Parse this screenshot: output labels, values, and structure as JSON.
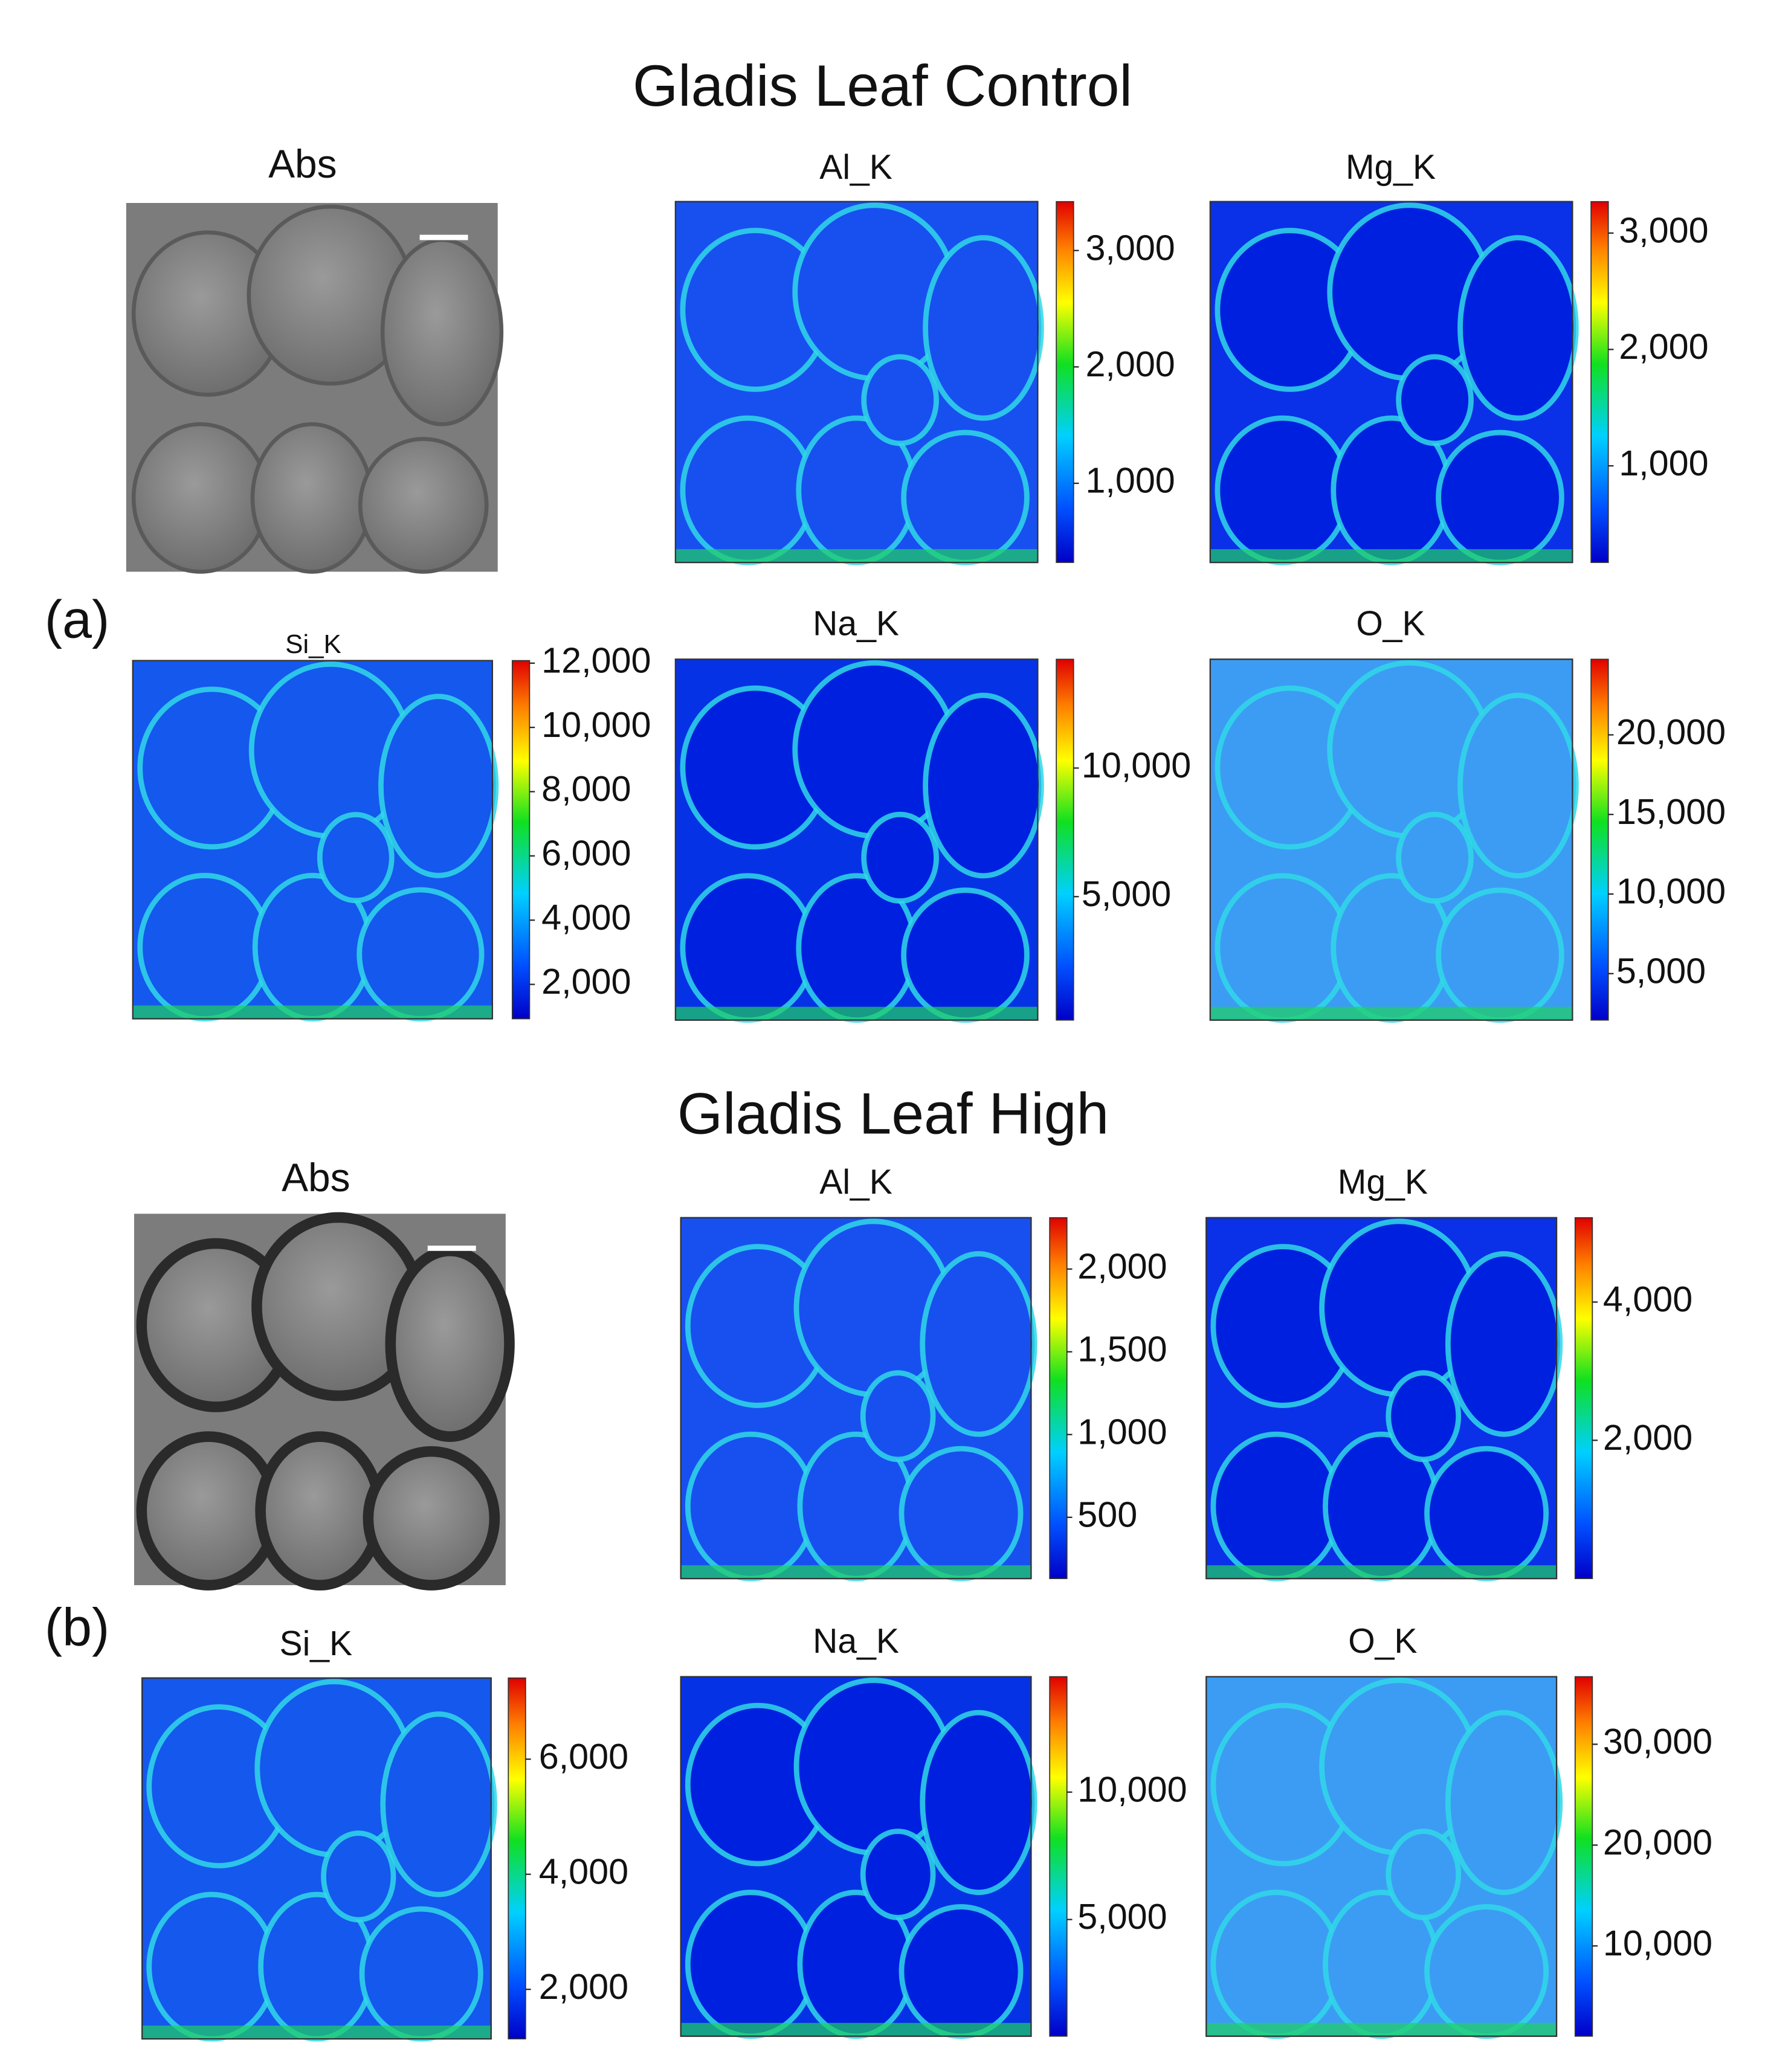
{
  "figure": {
    "panels": [
      {
        "label": "(a)",
        "title": "Gladis Leaf Control",
        "maps": [
          {
            "title": "Abs"
          },
          {
            "title": "Al_K",
            "clim": [
              320,
              3420
            ],
            "ticks": [
              {
                "value": 1000,
                "label": "1,000"
              },
              {
                "value": 2000,
                "label": "2,000"
              },
              {
                "value": 3000,
                "label": "3,000"
              }
            ]
          },
          {
            "title": "Mg_K",
            "clim": [
              170,
              3270
            ],
            "ticks": [
              {
                "value": 1000,
                "label": "1,000"
              },
              {
                "value": 2000,
                "label": "2,000"
              },
              {
                "value": 3000,
                "label": "3,000"
              }
            ]
          },
          {
            "title": "Si_K",
            "clim": [
              930,
              12080
            ],
            "ticks": [
              {
                "value": 2000,
                "label": "2,000"
              },
              {
                "value": 4000,
                "label": "4,000"
              },
              {
                "value": 6000,
                "label": "6,000"
              },
              {
                "value": 8000,
                "label": "8,000"
              },
              {
                "value": 10000,
                "label": "10,000"
              },
              {
                "value": 12000,
                "label": "12,000"
              }
            ]
          },
          {
            "title": "Na_K",
            "clim": [
              200,
              14230
            ],
            "ticks": [
              {
                "value": 5000,
                "label": "5,000"
              },
              {
                "value": 10000,
                "label": "10,000"
              }
            ]
          },
          {
            "title": "O_K",
            "clim": [
              2080,
              24750
            ],
            "ticks": [
              {
                "value": 5000,
                "label": "5,000"
              },
              {
                "value": 10000,
                "label": "10,000"
              },
              {
                "value": 15000,
                "label": "15,000"
              },
              {
                "value": 20000,
                "label": "20,000"
              }
            ]
          }
        ]
      },
      {
        "label": "(b)",
        "title": "Gladis Leaf High",
        "maps": [
          {
            "title": "Abs"
          },
          {
            "title": "Al_K",
            "clim": [
              130,
              2310
            ],
            "ticks": [
              500,
              {
                "value": 1000,
                "label": "1,000"
              },
              {
                "value": 1500,
                "label": "1,500"
              },
              {
                "value": 2000,
                "label": "2,000"
              }
            ]
          },
          {
            "title": "Mg_K",
            "clim": [
              0,
              5220
            ],
            "ticks": [
              {
                "value": 2000,
                "label": "2,000"
              },
              {
                "value": 4000,
                "label": "4,000"
              }
            ]
          },
          {
            "title": "Si_K",
            "clim": [
              1140,
              7410
            ],
            "ticks": [
              {
                "value": 2000,
                "label": "2,000"
              },
              {
                "value": 4000,
                "label": "4,000"
              },
              {
                "value": 6000,
                "label": "6,000"
              }
            ]
          },
          {
            "title": "Na_K",
            "clim": [
              420,
              14530
            ],
            "ticks": [
              {
                "value": 5000,
                "label": "5,000"
              },
              {
                "value": 10000,
                "label": "10,000"
              }
            ]
          },
          {
            "title": "O_K",
            "clim": [
              1050,
              36700
            ],
            "ticks": [
              {
                "value": 10000,
                "label": "10,000"
              },
              {
                "value": 20000,
                "label": "20,000"
              },
              {
                "value": 30000,
                "label": "30,000"
              }
            ]
          }
        ]
      }
    ]
  }
}
